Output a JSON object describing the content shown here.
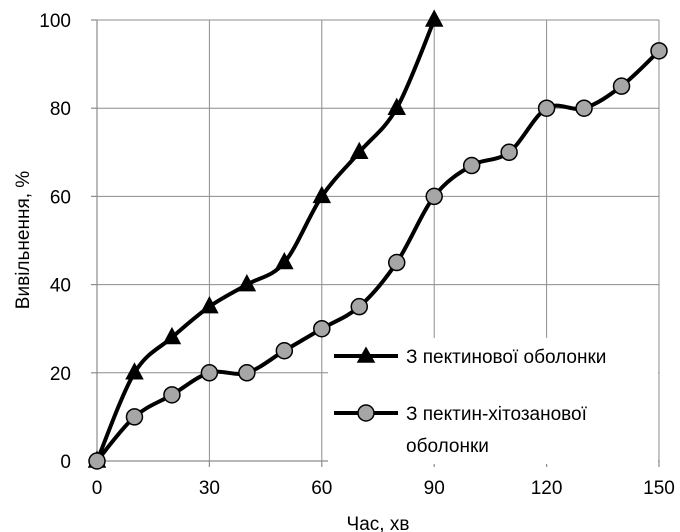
{
  "chart_data": {
    "type": "line",
    "title": "",
    "xlabel": "Час, хв",
    "ylabel": "Вивільнення, %",
    "xlim": [
      0,
      150
    ],
    "ylim": [
      0,
      100
    ],
    "xticks": [
      "0",
      "30",
      "60",
      "90",
      "120",
      "150"
    ],
    "yticks": [
      "0",
      "20",
      "40",
      "60",
      "80",
      "100"
    ],
    "grid": true,
    "legend_position": "bottom-right",
    "series": [
      {
        "name": "З пектинової оболонки",
        "marker": "triangle",
        "color": "#000000",
        "x": [
          0,
          10,
          20,
          30,
          40,
          50,
          60,
          70,
          80,
          90
        ],
        "values": [
          0,
          20,
          28,
          35,
          40,
          45,
          60,
          70,
          80,
          100
        ]
      },
      {
        "name": "З пектин-хітозанової оболонки",
        "marker": "circle",
        "color": "#000000",
        "marker_fill": "#a6a6a6",
        "x": [
          0,
          10,
          20,
          30,
          40,
          50,
          60,
          70,
          80,
          90,
          100,
          110,
          120,
          130,
          140,
          150
        ],
        "values": [
          0,
          10,
          15,
          20,
          20,
          25,
          30,
          35,
          45,
          60,
          67,
          70,
          80,
          80,
          85,
          93
        ]
      }
    ],
    "legend": {
      "entry1": "З пектинової оболонки",
      "entry2_line1": "З пектин-хітозанової",
      "entry2_line2": "оболонки"
    }
  }
}
